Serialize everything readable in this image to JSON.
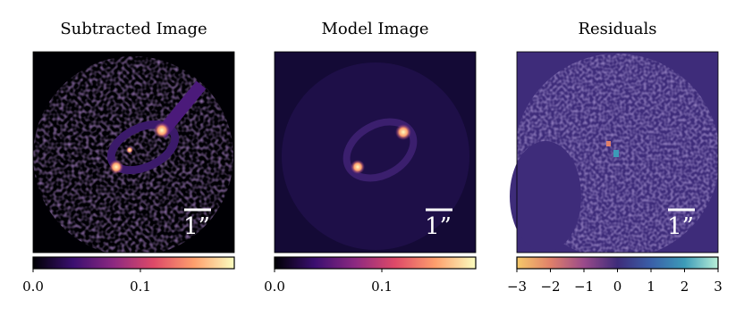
{
  "chart_data": [
    {
      "type": "image",
      "title": "Subtracted Image",
      "scale_bar_label": "1”",
      "cmap": [
        "#000004",
        "#3b0f70",
        "#8c2981",
        "#de4968",
        "#fe9f6d",
        "#fcfdbf"
      ],
      "xlim": [
        0,
        0.1875
      ],
      "xticks": [
        {
          "value": 0,
          "label": "0.0"
        },
        0.1
      ]
    },
    {
      "type": "image",
      "title": "Model Image",
      "scale_bar_label": "1”",
      "cmap": [
        "#000004",
        "#3b0f70",
        "#8c2981",
        "#de4968",
        "#fe9f6d",
        "#fcfdbf"
      ],
      "xlim": [
        0,
        0.1875
      ],
      "xticks": [
        {
          "value": 0,
          "label": "0.0"
        },
        0.1
      ]
    },
    {
      "type": "image",
      "title": "Residuals",
      "scale_bar_label": "1”",
      "cmap": [
        "#f6c96a",
        "#e0806a",
        "#9a4a8a",
        "#3e2c7a",
        "#3a5fa8",
        "#3c9bb8",
        "#b9f0d8"
      ],
      "xlim": [
        -3,
        3
      ],
      "xticks": [
        {
          "value": -3,
          "label": "−3"
        },
        {
          "value": -2,
          "label": "−2"
        },
        {
          "value": -1,
          "label": "−1"
        },
        0,
        1,
        2,
        3
      ]
    }
  ]
}
